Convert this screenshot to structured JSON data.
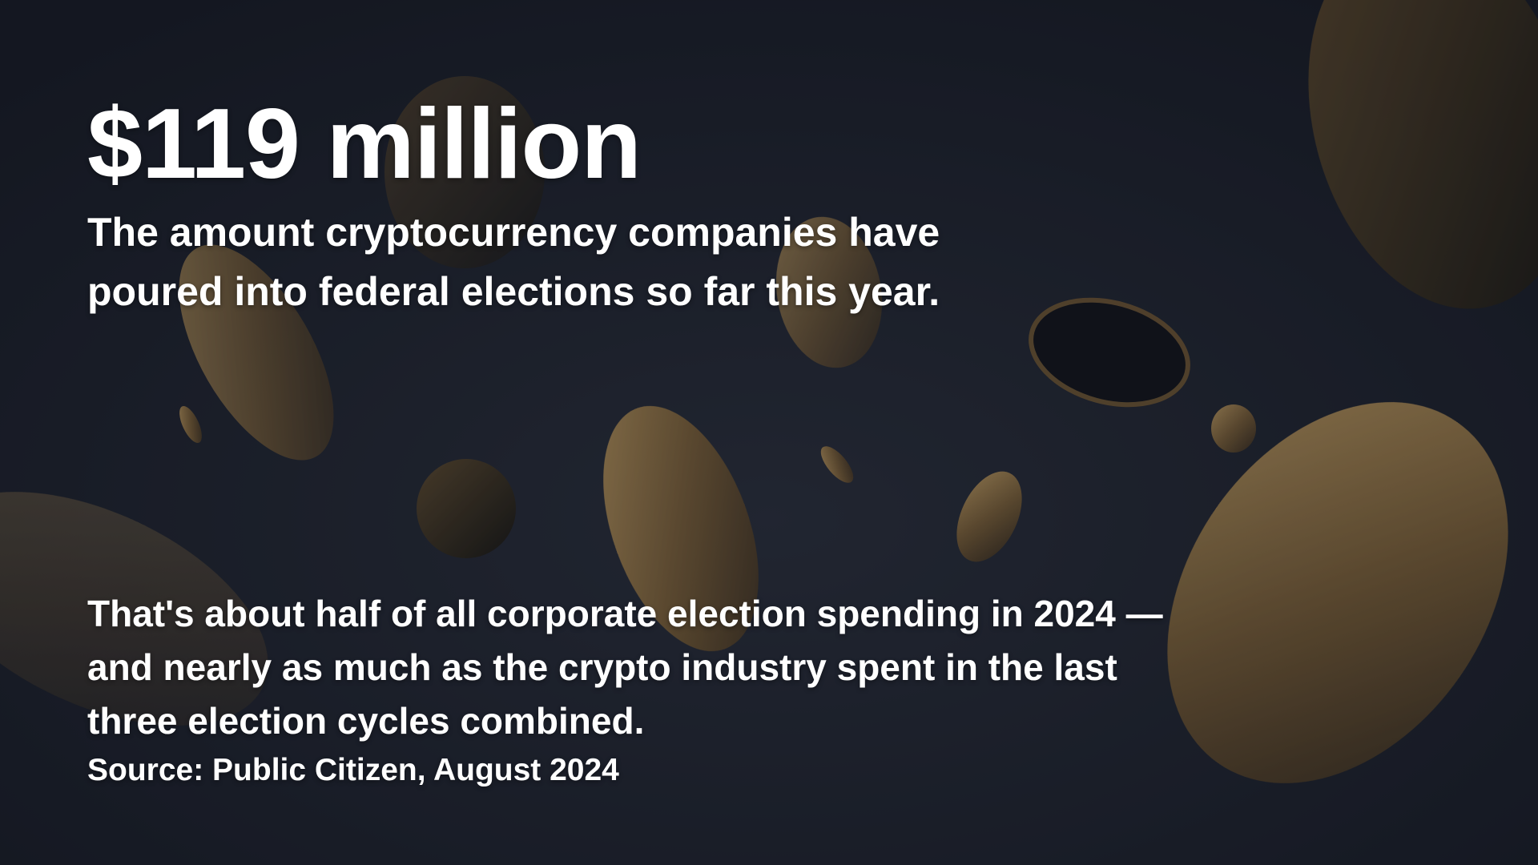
{
  "headline": "$119 million",
  "subheadline": [
    "The amount cryptocurrency companies have",
    "poured into federal elections so far this year."
  ],
  "body": [
    "That's about half of all corporate election spending in 2024 —",
    "and nearly as much as the crypto industry spent in the last",
    "three election cycles combined."
  ],
  "source": "Source: Public Citizen, August 2024"
}
